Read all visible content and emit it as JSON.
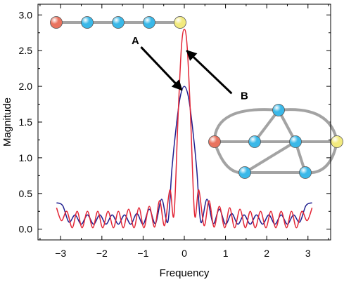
{
  "chart_data": {
    "type": "line",
    "title": "",
    "xlabel": "Frequency",
    "ylabel": "Magnitude",
    "xlim": [
      -3.55,
      3.55
    ],
    "ylim": [
      -0.15,
      3.15
    ],
    "x_ticks": [
      -3,
      -2,
      -1,
      0,
      1,
      2,
      3
    ],
    "x_tick_labels": [
      "−3",
      "−2",
      "−1",
      "0",
      "1",
      "2",
      "3"
    ],
    "y_ticks": [
      0.0,
      0.5,
      1.0,
      1.5,
      2.0,
      2.5,
      3.0
    ],
    "y_tick_labels": [
      "0.0",
      "0.5",
      "1.0",
      "1.5",
      "2.0",
      "2.5",
      "3.0"
    ],
    "grid": false,
    "series": [
      {
        "color": "#1f1f8f",
        "x": [
          -3.1,
          -2.95,
          -2.8,
          -2.65,
          -2.5,
          -2.35,
          -2.2,
          -2.05,
          -1.9,
          -1.75,
          -1.6,
          -1.45,
          -1.3,
          -1.15,
          -1.0,
          -0.85,
          -0.7,
          -0.55,
          -0.4,
          -0.3,
          -0.2,
          -0.1,
          0.0,
          0.1,
          0.2,
          0.3,
          0.4,
          0.55,
          0.7,
          0.85,
          1.0,
          1.15,
          1.3,
          1.45,
          1.6,
          1.75,
          1.9,
          2.05,
          2.2,
          2.35,
          2.5,
          2.65,
          2.8,
          2.95,
          3.1
        ],
        "y": [
          0.37,
          0.33,
          0.1,
          0.2,
          0.07,
          0.2,
          0.07,
          0.2,
          0.07,
          0.2,
          0.07,
          0.2,
          0.07,
          0.22,
          0.07,
          0.28,
          0.08,
          0.42,
          0.1,
          0.85,
          1.42,
          1.85,
          2.0,
          1.85,
          1.42,
          0.85,
          0.1,
          0.42,
          0.08,
          0.28,
          0.07,
          0.22,
          0.07,
          0.2,
          0.07,
          0.2,
          0.07,
          0.2,
          0.07,
          0.2,
          0.07,
          0.2,
          0.1,
          0.33,
          0.37
        ]
      },
      {
        "color": "#e32636",
        "x": [
          -3.1,
          -2.98,
          -2.85,
          -2.72,
          -2.6,
          -2.48,
          -2.35,
          -2.22,
          -2.1,
          -1.98,
          -1.85,
          -1.72,
          -1.6,
          -1.48,
          -1.35,
          -1.22,
          -1.1,
          -0.98,
          -0.85,
          -0.72,
          -0.6,
          -0.48,
          -0.35,
          -0.25,
          -0.15,
          -0.07,
          0.0,
          0.07,
          0.15,
          0.25,
          0.35,
          0.48,
          0.6,
          0.72,
          0.85,
          0.98,
          1.1,
          1.22,
          1.35,
          1.48,
          1.6,
          1.72,
          1.85,
          1.98,
          2.1,
          2.22,
          2.35,
          2.48,
          2.6,
          2.72,
          2.85,
          2.98,
          3.1
        ],
        "y": [
          0.3,
          0.12,
          0.25,
          0.02,
          0.25,
          0.02,
          0.25,
          0.02,
          0.25,
          0.02,
          0.25,
          0.02,
          0.25,
          0.02,
          0.28,
          0.02,
          0.3,
          0.02,
          0.32,
          0.03,
          0.4,
          0.05,
          0.55,
          0.2,
          1.6,
          2.55,
          2.8,
          2.55,
          1.6,
          0.2,
          0.55,
          0.05,
          0.4,
          0.03,
          0.32,
          0.02,
          0.3,
          0.02,
          0.28,
          0.02,
          0.25,
          0.02,
          0.25,
          0.02,
          0.25,
          0.02,
          0.25,
          0.02,
          0.25,
          0.02,
          0.25,
          0.12,
          0.3
        ]
      }
    ],
    "annotations": {
      "label_a": "A",
      "label_b": "B",
      "arrow_a": {
        "from": [
          -1.05,
          2.55
        ],
        "to": [
          -0.06,
          1.95
        ]
      },
      "arrow_b": {
        "from": [
          1.15,
          1.9
        ],
        "to": [
          0.06,
          2.5
        ]
      }
    }
  },
  "insets": {
    "chain_graph": {
      "node_colors": [
        "#e9735f",
        "#3ab8e8",
        "#3ab8e8",
        "#3ab8e8",
        "#f2ea7e"
      ],
      "edge_color": "#a3a3a3"
    },
    "network_graph": {
      "node_colors": [
        "#e9735f",
        "#3ab8e8",
        "#3ab8e8",
        "#3ab8e8",
        "#3ab8e8",
        "#3ab8e8",
        "#f2ea7e"
      ],
      "edge_color": "#a3a3a3"
    }
  }
}
